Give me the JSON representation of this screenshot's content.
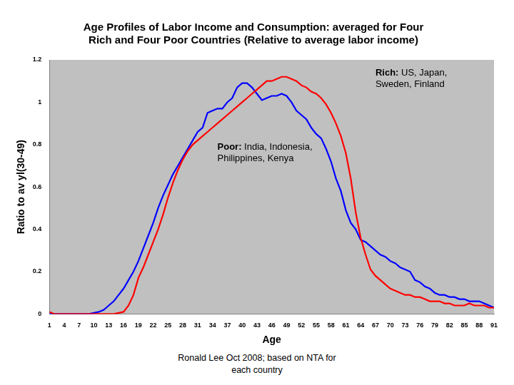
{
  "chart_data": {
    "type": "line",
    "title": [
      "Age Profiles of Labor Income and Consumption: averaged for Four",
      "Rich and Four Poor Countries (Relative to average labor income)"
    ],
    "x_label": "Age",
    "y_label": "Ratio to av yl(30-49)",
    "source": "Ronald Lee Oct 2008; based on NTA for each country",
    "x": [
      1,
      2,
      3,
      4,
      5,
      6,
      7,
      8,
      9,
      10,
      11,
      12,
      13,
      14,
      15,
      16,
      17,
      18,
      19,
      20,
      21,
      22,
      23,
      24,
      25,
      26,
      27,
      28,
      29,
      30,
      31,
      32,
      33,
      34,
      35,
      36,
      37,
      38,
      39,
      40,
      41,
      42,
      43,
      44,
      45,
      46,
      47,
      48,
      49,
      50,
      51,
      52,
      53,
      54,
      55,
      56,
      57,
      58,
      59,
      60,
      61,
      62,
      63,
      64,
      65,
      66,
      67,
      68,
      69,
      70,
      71,
      72,
      73,
      74,
      75,
      76,
      77,
      78,
      79,
      80,
      81,
      82,
      83,
      84,
      85,
      86,
      87,
      88,
      89,
      90,
      91
    ],
    "series": [
      {
        "name": "Rich: US, Japan, Sweden, Finland",
        "color": "#ff0000",
        "values": [
          0.01,
          0,
          0,
          0,
          0,
          0,
          0,
          0,
          0,
          0,
          0,
          0,
          0,
          0,
          0.005,
          0.01,
          0.04,
          0.09,
          0.17,
          0.22,
          0.28,
          0.34,
          0.4,
          0.47,
          0.55,
          0.62,
          0.68,
          0.73,
          0.77,
          0.8,
          0.82,
          0.84,
          0.86,
          0.88,
          0.9,
          0.92,
          0.94,
          0.96,
          0.98,
          1.0,
          1.02,
          1.04,
          1.06,
          1.08,
          1.1,
          1.1,
          1.11,
          1.12,
          1.12,
          1.11,
          1.1,
          1.08,
          1.07,
          1.05,
          1.04,
          1.02,
          0.99,
          0.95,
          0.9,
          0.84,
          0.76,
          0.64,
          0.48,
          0.36,
          0.28,
          0.21,
          0.18,
          0.16,
          0.14,
          0.12,
          0.11,
          0.1,
          0.09,
          0.09,
          0.08,
          0.08,
          0.07,
          0.06,
          0.06,
          0.06,
          0.05,
          0.05,
          0.04,
          0.04,
          0.04,
          0.05,
          0.04,
          0.04,
          0.04,
          0.03,
          0.03
        ]
      },
      {
        "name": "Poor: India, Indonesia, Philippines, Kenya",
        "color": "#0000ff",
        "values": [
          0,
          0,
          0,
          0,
          0,
          0,
          0,
          0,
          0,
          0.005,
          0.01,
          0.02,
          0.04,
          0.06,
          0.09,
          0.12,
          0.16,
          0.2,
          0.25,
          0.31,
          0.37,
          0.43,
          0.5,
          0.56,
          0.61,
          0.66,
          0.7,
          0.74,
          0.78,
          0.82,
          0.86,
          0.88,
          0.95,
          0.96,
          0.97,
          0.97,
          1.0,
          1.02,
          1.07,
          1.09,
          1.09,
          1.07,
          1.04,
          1.01,
          1.02,
          1.03,
          1.03,
          1.04,
          1.03,
          1.0,
          0.96,
          0.94,
          0.92,
          0.88,
          0.85,
          0.83,
          0.78,
          0.72,
          0.64,
          0.58,
          0.49,
          0.43,
          0.4,
          0.35,
          0.34,
          0.32,
          0.3,
          0.28,
          0.27,
          0.25,
          0.24,
          0.22,
          0.21,
          0.2,
          0.16,
          0.15,
          0.13,
          0.12,
          0.1,
          0.09,
          0.09,
          0.08,
          0.08,
          0.07,
          0.07,
          0.06,
          0.06,
          0.06,
          0.05,
          0.04,
          0.03
        ]
      }
    ],
    "xlim": [
      1,
      91
    ],
    "xticks": [
      1,
      4,
      7,
      10,
      13,
      16,
      19,
      22,
      25,
      28,
      31,
      34,
      37,
      40,
      43,
      46,
      49,
      52,
      55,
      58,
      61,
      64,
      67,
      70,
      73,
      76,
      79,
      82,
      85,
      88,
      91
    ],
    "ylim": [
      0,
      1.2
    ],
    "yticks": [
      0,
      0.2,
      0.4,
      0.6,
      0.8,
      1,
      1.2
    ],
    "grid": false,
    "legend": false,
    "marker": "none"
  }
}
